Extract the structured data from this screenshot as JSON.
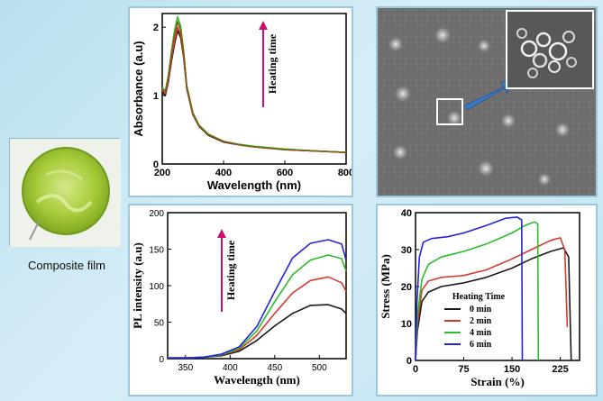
{
  "photo": {
    "caption": "Composite film"
  },
  "chart_data": [
    {
      "type": "line",
      "name": "absorbance",
      "xlabel": "Wavelength (nm)",
      "ylabel": "Absorbance (a.u)",
      "xlim": [
        200,
        800
      ],
      "ylim": [
        0,
        2.2
      ],
      "xticks": [
        "200",
        "400",
        "600",
        "800"
      ],
      "yticks": [
        "0",
        "1",
        "2"
      ],
      "annotation": "Heating time",
      "series": [
        {
          "color": "#1a1a1a",
          "x": [
            200,
            210,
            220,
            230,
            240,
            250,
            260,
            270,
            280,
            300,
            320,
            350,
            400,
            450,
            500,
            600,
            700,
            800
          ],
          "y": [
            1.05,
            1.0,
            1.2,
            1.5,
            1.75,
            1.95,
            1.85,
            1.55,
            1.1,
            0.72,
            0.55,
            0.42,
            0.32,
            0.28,
            0.25,
            0.21,
            0.19,
            0.17
          ]
        },
        {
          "color": "#d43a2e",
          "x": [
            200,
            210,
            220,
            230,
            240,
            250,
            260,
            270,
            280,
            300,
            320,
            350,
            400,
            450,
            500,
            600,
            700,
            800
          ],
          "y": [
            1.08,
            1.03,
            1.23,
            1.55,
            1.8,
            2.0,
            1.9,
            1.58,
            1.12,
            0.73,
            0.56,
            0.43,
            0.33,
            0.28,
            0.25,
            0.21,
            0.19,
            0.17
          ]
        },
        {
          "color": "#2bbd2b",
          "x": [
            200,
            210,
            220,
            230,
            240,
            250,
            260,
            270,
            280,
            300,
            320,
            350,
            400,
            450,
            500,
            600,
            700,
            800
          ],
          "y": [
            1.12,
            1.07,
            1.3,
            1.65,
            1.95,
            2.15,
            2.02,
            1.65,
            1.15,
            0.75,
            0.57,
            0.44,
            0.33,
            0.29,
            0.26,
            0.22,
            0.19,
            0.17
          ]
        },
        {
          "color": "#8a5a1a",
          "x": [
            200,
            210,
            220,
            230,
            240,
            250,
            260,
            270,
            280,
            300,
            320,
            350,
            400,
            450,
            500,
            600,
            700,
            800
          ],
          "y": [
            1.1,
            1.05,
            1.27,
            1.6,
            1.88,
            2.08,
            1.96,
            1.62,
            1.13,
            0.74,
            0.56,
            0.43,
            0.33,
            0.28,
            0.25,
            0.21,
            0.19,
            0.17
          ]
        }
      ]
    },
    {
      "type": "line",
      "name": "photoluminescence",
      "xlabel": "Wavelength (nm)",
      "ylabel": "PL intensity (a.u)",
      "xlim": [
        330,
        530
      ],
      "ylim": [
        0,
        200
      ],
      "xticks": [
        "350",
        "400",
        "450",
        "500"
      ],
      "yticks": [
        "0",
        "50",
        "100",
        "150",
        "200"
      ],
      "annotation": "Heating time",
      "series": [
        {
          "color": "#1a1a1a",
          "x": [
            330,
            350,
            370,
            390,
            410,
            430,
            450,
            470,
            490,
            510,
            525,
            530
          ],
          "y": [
            1,
            1,
            2,
            4,
            10,
            25,
            45,
            62,
            73,
            74,
            68,
            62
          ]
        },
        {
          "color": "#d43a2e",
          "x": [
            330,
            350,
            370,
            390,
            410,
            430,
            450,
            470,
            490,
            510,
            525,
            530
          ],
          "y": [
            1,
            1,
            2,
            5,
            12,
            32,
            62,
            90,
            107,
            112,
            104,
            92
          ]
        },
        {
          "color": "#2bbd2b",
          "x": [
            330,
            350,
            370,
            390,
            410,
            430,
            450,
            470,
            490,
            510,
            525,
            530
          ],
          "y": [
            1,
            1,
            2,
            5,
            14,
            38,
            78,
            115,
            135,
            142,
            137,
            120
          ]
        },
        {
          "color": "#2424d8",
          "x": [
            330,
            350,
            370,
            390,
            410,
            430,
            450,
            470,
            490,
            510,
            525,
            530
          ],
          "y": [
            1,
            1,
            2,
            6,
            16,
            44,
            92,
            138,
            158,
            163,
            157,
            135
          ]
        }
      ]
    },
    {
      "type": "line",
      "name": "stress-strain",
      "xlabel": "Strain (%)",
      "ylabel": "Stress (MPa)",
      "xlim": [
        0,
        255
      ],
      "ylim": [
        0,
        40
      ],
      "xticks": [
        "0",
        "75",
        "150",
        "225"
      ],
      "yticks": [
        "0",
        "10",
        "20",
        "30",
        "40"
      ],
      "legend_title": "Heating Time",
      "legend_position": "center",
      "series": [
        {
          "name": "0 min",
          "color": "#1a1a1a",
          "x": [
            0,
            3,
            10,
            20,
            40,
            75,
            110,
            150,
            180,
            210,
            230,
            238,
            242
          ],
          "y": [
            0,
            8,
            16,
            18.5,
            20,
            21,
            22.5,
            25,
            27.5,
            29.5,
            30.5,
            28,
            0
          ]
        },
        {
          "name": "2 min",
          "color": "#d43a2e",
          "x": [
            0,
            3,
            10,
            20,
            40,
            75,
            110,
            150,
            180,
            210,
            225,
            232,
            236
          ],
          "y": [
            0,
            10,
            19,
            21.5,
            22.5,
            23,
            24.5,
            27.5,
            30,
            32.5,
            33.2,
            30,
            9
          ]
        },
        {
          "name": "4 min",
          "color": "#2bbd2b",
          "x": [
            0,
            3,
            10,
            20,
            40,
            75,
            110,
            150,
            170,
            185,
            190,
            191
          ],
          "y": [
            0,
            12,
            22,
            26,
            28,
            29.5,
            31.5,
            34.5,
            36.5,
            37.5,
            37,
            0
          ]
        },
        {
          "name": "6 min",
          "color": "#2424d8",
          "x": [
            0,
            2,
            6,
            12,
            25,
            50,
            75,
            110,
            140,
            158,
            165,
            166
          ],
          "y": [
            0,
            15,
            28,
            32,
            33,
            33.5,
            34.5,
            36.5,
            38.5,
            38.8,
            38,
            0
          ]
        }
      ]
    }
  ]
}
